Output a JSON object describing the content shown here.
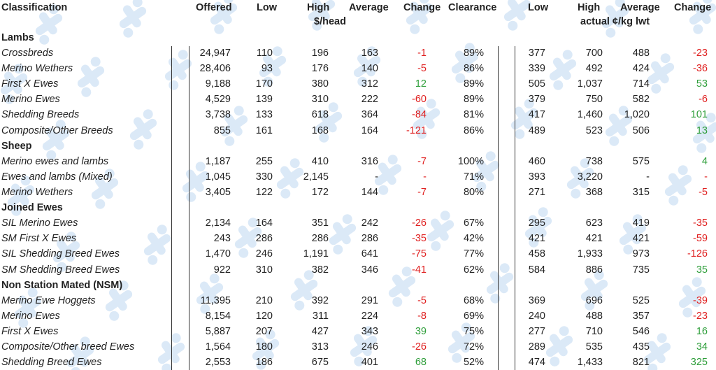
{
  "header": {
    "classification": "Classification",
    "offered": "Offered",
    "low": "Low",
    "high": "High",
    "average": "Average",
    "change": "Change",
    "clearance": "Clearance",
    "low2": "Low",
    "high2": "High",
    "average2": "Average",
    "change2": "Change",
    "unit_head": "$/head",
    "unit_kg": "actual ¢/kg lwt"
  },
  "colors": {
    "negative": "#e02020",
    "positive": "#2e9e3a",
    "watermark": "#dbe9f7",
    "text": "#222222"
  },
  "watermark_icon": "stylised-tc-logo-icon",
  "sections": [
    {
      "title": "Lambs",
      "rows": [
        {
          "name": "Crossbreds",
          "offered": "24,947",
          "low": "110",
          "high": "196",
          "average": "163",
          "change": "-1",
          "clearance": "89%",
          "low_kg": "377",
          "high_kg": "700",
          "average_kg": "488",
          "change_kg": "-23"
        },
        {
          "name": "Merino Wethers",
          "offered": "28,406",
          "low": "93",
          "high": "176",
          "average": "140",
          "change": "-5",
          "clearance": "86%",
          "low_kg": "339",
          "high_kg": "492",
          "average_kg": "424",
          "change_kg": "-36"
        },
        {
          "name": "First X Ewes",
          "offered": "9,188",
          "low": "170",
          "high": "380",
          "average": "312",
          "change": "12",
          "clearance": "89%",
          "low_kg": "505",
          "high_kg": "1,037",
          "average_kg": "714",
          "change_kg": "53"
        },
        {
          "name": "Merino Ewes",
          "offered": "4,529",
          "low": "139",
          "high": "310",
          "average": "222",
          "change": "-60",
          "clearance": "89%",
          "low_kg": "379",
          "high_kg": "750",
          "average_kg": "582",
          "change_kg": "-6"
        },
        {
          "name": "Shedding Breeds",
          "offered": "3,738",
          "low": "133",
          "high": "618",
          "average": "364",
          "change": "-84",
          "clearance": "81%",
          "low_kg": "417",
          "high_kg": "1,460",
          "average_kg": "1,020",
          "change_kg": "101"
        },
        {
          "name": "Composite/Other Breeds",
          "offered": "855",
          "low": "161",
          "high": "168",
          "average": "164",
          "change": "-121",
          "clearance": "86%",
          "low_kg": "489",
          "high_kg": "523",
          "average_kg": "506",
          "change_kg": "13"
        }
      ]
    },
    {
      "title": "Sheep",
      "rows": [
        {
          "name": "Merino ewes and lambs",
          "offered": "1,187",
          "low": "255",
          "high": "410",
          "average": "316",
          "change": "-7",
          "clearance": "100%",
          "low_kg": "460",
          "high_kg": "738",
          "average_kg": "575",
          "change_kg": "4"
        },
        {
          "name": "Ewes and lambs (Mixed)",
          "offered": "1,045",
          "low": "330",
          "high": "2,145",
          "average": "-",
          "change": "-",
          "clearance": "71%",
          "low_kg": "393",
          "high_kg": "3,220",
          "average_kg": "-",
          "change_kg": "-"
        },
        {
          "name": "Merino Wethers",
          "offered": "3,405",
          "low": "122",
          "high": "172",
          "average": "144",
          "change": "-7",
          "clearance": "80%",
          "low_kg": "271",
          "high_kg": "368",
          "average_kg": "315",
          "change_kg": "-5"
        }
      ]
    },
    {
      "title": "Joined Ewes",
      "rows": [
        {
          "name": "SIL Merino Ewes",
          "offered": "2,134",
          "low": "164",
          "high": "351",
          "average": "242",
          "change": "-26",
          "clearance": "67%",
          "low_kg": "295",
          "high_kg": "623",
          "average_kg": "419",
          "change_kg": "-35"
        },
        {
          "name": "SM First X Ewes",
          "offered": "243",
          "low": "286",
          "high": "286",
          "average": "286",
          "change": "-35",
          "clearance": "42%",
          "low_kg": "421",
          "high_kg": "421",
          "average_kg": "421",
          "change_kg": "-59"
        },
        {
          "name": "SIL Shedding Breed Ewes",
          "offered": "1,470",
          "low": "246",
          "high": "1,191",
          "average": "641",
          "change": "-75",
          "clearance": "77%",
          "low_kg": "458",
          "high_kg": "1,933",
          "average_kg": "973",
          "change_kg": "-126"
        },
        {
          "name": "SM Shedding Breed Ewes",
          "offered": "922",
          "low": "310",
          "high": "382",
          "average": "346",
          "change": "-41",
          "clearance": "62%",
          "low_kg": "584",
          "high_kg": "886",
          "average_kg": "735",
          "change_kg": "35"
        }
      ]
    },
    {
      "title": "Non Station Mated (NSM)",
      "rows": [
        {
          "name": "Merino Ewe Hoggets",
          "offered": "11,395",
          "low": "210",
          "high": "392",
          "average": "291",
          "change": "-5",
          "clearance": "68%",
          "low_kg": "369",
          "high_kg": "696",
          "average_kg": "525",
          "change_kg": "-39"
        },
        {
          "name": "Merino Ewes",
          "offered": "8,154",
          "low": "120",
          "high": "311",
          "average": "224",
          "change": "-8",
          "clearance": "69%",
          "low_kg": "240",
          "high_kg": "488",
          "average_kg": "357",
          "change_kg": "-23"
        },
        {
          "name": "First X Ewes",
          "offered": "5,887",
          "low": "207",
          "high": "427",
          "average": "343",
          "change": "39",
          "clearance": "75%",
          "low_kg": "277",
          "high_kg": "710",
          "average_kg": "546",
          "change_kg": "16"
        },
        {
          "name": "Composite/Other breed Ewes",
          "offered": "1,564",
          "low": "180",
          "high": "313",
          "average": "246",
          "change": "-26",
          "clearance": "72%",
          "low_kg": "289",
          "high_kg": "535",
          "average_kg": "435",
          "change_kg": "34"
        },
        {
          "name": "Shedding Breed Ewes",
          "offered": "2,553",
          "low": "186",
          "high": "675",
          "average": "401",
          "change": "68",
          "clearance": "52%",
          "low_kg": "474",
          "high_kg": "1,433",
          "average_kg": "821",
          "change_kg": "325"
        }
      ]
    }
  ]
}
